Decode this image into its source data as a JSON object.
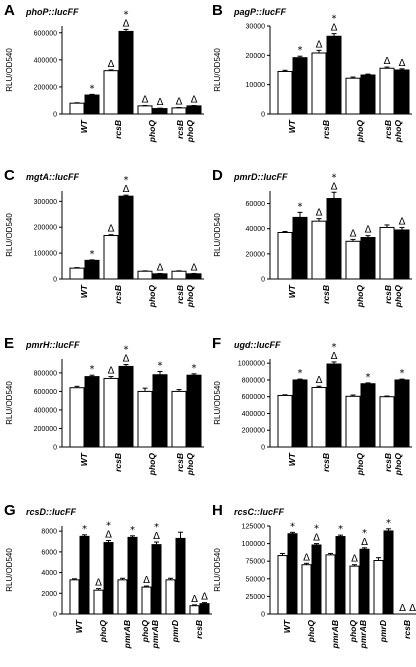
{
  "figure": {
    "legend": {
      "open_bar": "",
      "filled_bar": ""
    },
    "markers": {
      "star": "*",
      "delta": "Δ"
    }
  },
  "chart_data": [
    {
      "panel": "A",
      "type": "bar",
      "title": "phoP::lucFF",
      "ylabel": "RLU/OD540",
      "ylim": [
        0,
        650000
      ],
      "yticks": [
        0,
        200000,
        400000,
        600000
      ],
      "grid": false,
      "categories": [
        "WT",
        "rcsB",
        "phoQ",
        "rcsB phoQ"
      ],
      "series": [
        {
          "values": [
            80000,
            320000,
            60000,
            45000
          ],
          "errors": [
            3000,
            6000,
            3000,
            3000
          ]
        },
        {
          "values": [
            140000,
            610000,
            40000,
            60000
          ],
          "errors": [
            5000,
            15000,
            3000,
            3000
          ]
        }
      ],
      "annotations": [
        {
          "category": 0,
          "series": 1,
          "marks": "*"
        },
        {
          "category": 1,
          "series": 0,
          "marks": "Δ"
        },
        {
          "category": 1,
          "series": 1,
          "marks": "*Δ"
        },
        {
          "category": 2,
          "series": 0,
          "marks": "Δ"
        },
        {
          "category": 2,
          "series": 1,
          "marks": "Δ"
        },
        {
          "category": 3,
          "series": 0,
          "marks": "Δ"
        },
        {
          "category": 3,
          "series": 1,
          "marks": "Δ"
        }
      ]
    },
    {
      "panel": "B",
      "type": "bar",
      "title": "pagP::lucFF",
      "ylabel": "RLU/OD540",
      "ylim": [
        0,
        30000
      ],
      "yticks": [
        0,
        10000,
        20000,
        30000
      ],
      "grid": false,
      "categories": [
        "WT",
        "rcsB",
        "phoQ",
        "rcsB phoQ"
      ],
      "series": [
        {
          "values": [
            14500,
            20800,
            12200,
            15600
          ],
          "errors": [
            400,
            900,
            400,
            400
          ]
        },
        {
          "values": [
            19200,
            26500,
            13300,
            15000
          ],
          "errors": [
            500,
            900,
            300,
            400
          ]
        }
      ],
      "annotations": [
        {
          "category": 0,
          "series": 1,
          "marks": "*"
        },
        {
          "category": 1,
          "series": 0,
          "marks": "Δ"
        },
        {
          "category": 1,
          "series": 1,
          "marks": "*Δ"
        },
        {
          "category": 3,
          "series": 0,
          "marks": "Δ"
        },
        {
          "category": 3,
          "series": 1,
          "marks": "Δ"
        }
      ]
    },
    {
      "panel": "C",
      "type": "bar",
      "title": "mgtA::lucFF",
      "ylabel": "RLU/OD540",
      "ylim": [
        0,
        340000
      ],
      "yticks": [
        0,
        100000,
        200000,
        300000
      ],
      "grid": false,
      "categories": [
        "WT",
        "rcsB",
        "phoQ",
        "rcsB phoQ"
      ],
      "series": [
        {
          "values": [
            42000,
            168000,
            30000,
            30000
          ],
          "errors": [
            2000,
            3000,
            1500,
            1500
          ]
        },
        {
          "values": [
            72000,
            320000,
            20000,
            20000
          ],
          "errors": [
            2000,
            4000,
            1500,
            1500
          ]
        }
      ],
      "annotations": [
        {
          "category": 0,
          "series": 1,
          "marks": "*"
        },
        {
          "category": 1,
          "series": 0,
          "marks": "Δ"
        },
        {
          "category": 1,
          "series": 1,
          "marks": "*Δ"
        },
        {
          "category": 2,
          "series": 1,
          "marks": "Δ"
        },
        {
          "category": 3,
          "series": 1,
          "marks": "Δ"
        }
      ]
    },
    {
      "panel": "D",
      "type": "bar",
      "title": "pmrD::lucFF",
      "ylabel": "RLU/OD540",
      "ylim": [
        0,
        70000
      ],
      "yticks": [
        0,
        20000,
        40000,
        60000
      ],
      "grid": false,
      "categories": [
        "WT",
        "rcsB",
        "phoQ",
        "rcsB phoQ"
      ],
      "series": [
        {
          "values": [
            37000,
            46000,
            30000,
            41000
          ],
          "errors": [
            800,
            2000,
            1500,
            2000
          ]
        },
        {
          "values": [
            49000,
            64000,
            33000,
            39000
          ],
          "errors": [
            4000,
            5000,
            1500,
            2000
          ]
        }
      ],
      "annotations": [
        {
          "category": 0,
          "series": 1,
          "marks": "*"
        },
        {
          "category": 1,
          "series": 0,
          "marks": "Δ"
        },
        {
          "category": 1,
          "series": 1,
          "marks": "*Δ"
        },
        {
          "category": 2,
          "series": 0,
          "marks": "Δ"
        },
        {
          "category": 2,
          "series": 1,
          "marks": "Δ"
        },
        {
          "category": 3,
          "series": 1,
          "marks": "Δ"
        }
      ]
    },
    {
      "panel": "E",
      "type": "bar",
      "title": "pmrH::lucFF",
      "ylabel": "RLU/OD540",
      "ylim": [
        0,
        950000
      ],
      "yticks": [
        0,
        200000,
        400000,
        600000,
        800000
      ],
      "grid": false,
      "categories": [
        "WT",
        "rcsB",
        "phoQ",
        "rcsB phoQ"
      ],
      "series": [
        {
          "values": [
            640000,
            740000,
            600000,
            600000
          ],
          "errors": [
            15000,
            20000,
            35000,
            20000
          ]
        },
        {
          "values": [
            760000,
            870000,
            780000,
            775000
          ],
          "errors": [
            15000,
            20000,
            35000,
            15000
          ]
        }
      ],
      "annotations": [
        {
          "category": 0,
          "series": 1,
          "marks": "*"
        },
        {
          "category": 1,
          "series": 0,
          "marks": "Δ"
        },
        {
          "category": 1,
          "series": 1,
          "marks": "*Δ"
        },
        {
          "category": 2,
          "series": 1,
          "marks": "*"
        },
        {
          "category": 3,
          "series": 1,
          "marks": "*"
        }
      ]
    },
    {
      "panel": "F",
      "type": "bar",
      "title": "ugd::lucFF",
      "ylabel": "RLU/OD540",
      "ylim": [
        0,
        1050000
      ],
      "yticks": [
        0,
        200000,
        400000,
        600000,
        800000,
        1000000
      ],
      "grid": false,
      "categories": [
        "WT",
        "rcsB",
        "phoQ",
        "rcsB phoQ"
      ],
      "series": [
        {
          "values": [
            615000,
            710000,
            605000,
            600000
          ],
          "errors": [
            8000,
            15000,
            15000,
            8000
          ]
        },
        {
          "values": [
            800000,
            990000,
            755000,
            800000
          ],
          "errors": [
            10000,
            25000,
            10000,
            10000
          ]
        }
      ],
      "annotations": [
        {
          "category": 0,
          "series": 1,
          "marks": "*"
        },
        {
          "category": 1,
          "series": 0,
          "marks": "Δ"
        },
        {
          "category": 1,
          "series": 1,
          "marks": "*Δ"
        },
        {
          "category": 2,
          "series": 1,
          "marks": "*"
        },
        {
          "category": 3,
          "series": 1,
          "marks": "*"
        }
      ]
    },
    {
      "panel": "G",
      "type": "bar",
      "title": "rcsD::lucFF",
      "ylabel": "RLU/OD540",
      "ylim": [
        0,
        8500
      ],
      "yticks": [
        0,
        2000,
        4000,
        6000,
        8000
      ],
      "grid": false,
      "categories": [
        "WT",
        "phoQ",
        "pmrAB",
        "phoQ pmrAB",
        "pmrD",
        "rcsB"
      ],
      "series": [
        {
          "values": [
            3300,
            2300,
            3300,
            2600,
            3300,
            800
          ],
          "errors": [
            100,
            150,
            150,
            100,
            150,
            80
          ]
        },
        {
          "values": [
            7500,
            6900,
            7400,
            6700,
            7300,
            1000
          ],
          "errors": [
            150,
            200,
            150,
            250,
            600,
            100
          ]
        }
      ],
      "annotations": [
        {
          "category": 0,
          "series": 1,
          "marks": "*"
        },
        {
          "category": 1,
          "series": 0,
          "marks": "Δ"
        },
        {
          "category": 1,
          "series": 1,
          "marks": "*Δ"
        },
        {
          "category": 2,
          "series": 1,
          "marks": "*"
        },
        {
          "category": 3,
          "series": 0,
          "marks": "Δ"
        },
        {
          "category": 3,
          "series": 1,
          "marks": "*Δ"
        },
        {
          "category": 5,
          "series": 0,
          "marks": "Δ"
        },
        {
          "category": 5,
          "series": 1,
          "marks": "Δ"
        }
      ]
    },
    {
      "panel": "H",
      "type": "bar",
      "title": "rcsC::lucFF",
      "ylabel": "RLU/OD540",
      "ylim": [
        0,
        125000
      ],
      "yticks": [
        0,
        25000,
        50000,
        75000,
        100000,
        125000
      ],
      "grid": false,
      "categories": [
        "WT",
        "phoQ",
        "pmrAB",
        "phoQ pmrAB",
        "pmrD",
        "rcsB"
      ],
      "series": [
        {
          "values": [
            83000,
            70000,
            84000,
            68000,
            76000,
            0
          ],
          "errors": [
            3000,
            2000,
            2000,
            2000,
            4000,
            0
          ]
        },
        {
          "values": [
            114000,
            98000,
            110000,
            92000,
            118000,
            0
          ],
          "errors": [
            2000,
            2000,
            2000,
            2000,
            3000,
            0
          ]
        }
      ],
      "annotations": [
        {
          "category": 0,
          "series": 1,
          "marks": "*"
        },
        {
          "category": 1,
          "series": 0,
          "marks": "Δ"
        },
        {
          "category": 1,
          "series": 1,
          "marks": "*Δ"
        },
        {
          "category": 2,
          "series": 1,
          "marks": "*"
        },
        {
          "category": 3,
          "series": 0,
          "marks": "Δ"
        },
        {
          "category": 3,
          "series": 1,
          "marks": "*Δ"
        },
        {
          "category": 4,
          "series": 1,
          "marks": "*"
        },
        {
          "category": 5,
          "series": 0,
          "marks": "Δ"
        },
        {
          "category": 5,
          "series": 1,
          "marks": "Δ"
        }
      ]
    }
  ]
}
